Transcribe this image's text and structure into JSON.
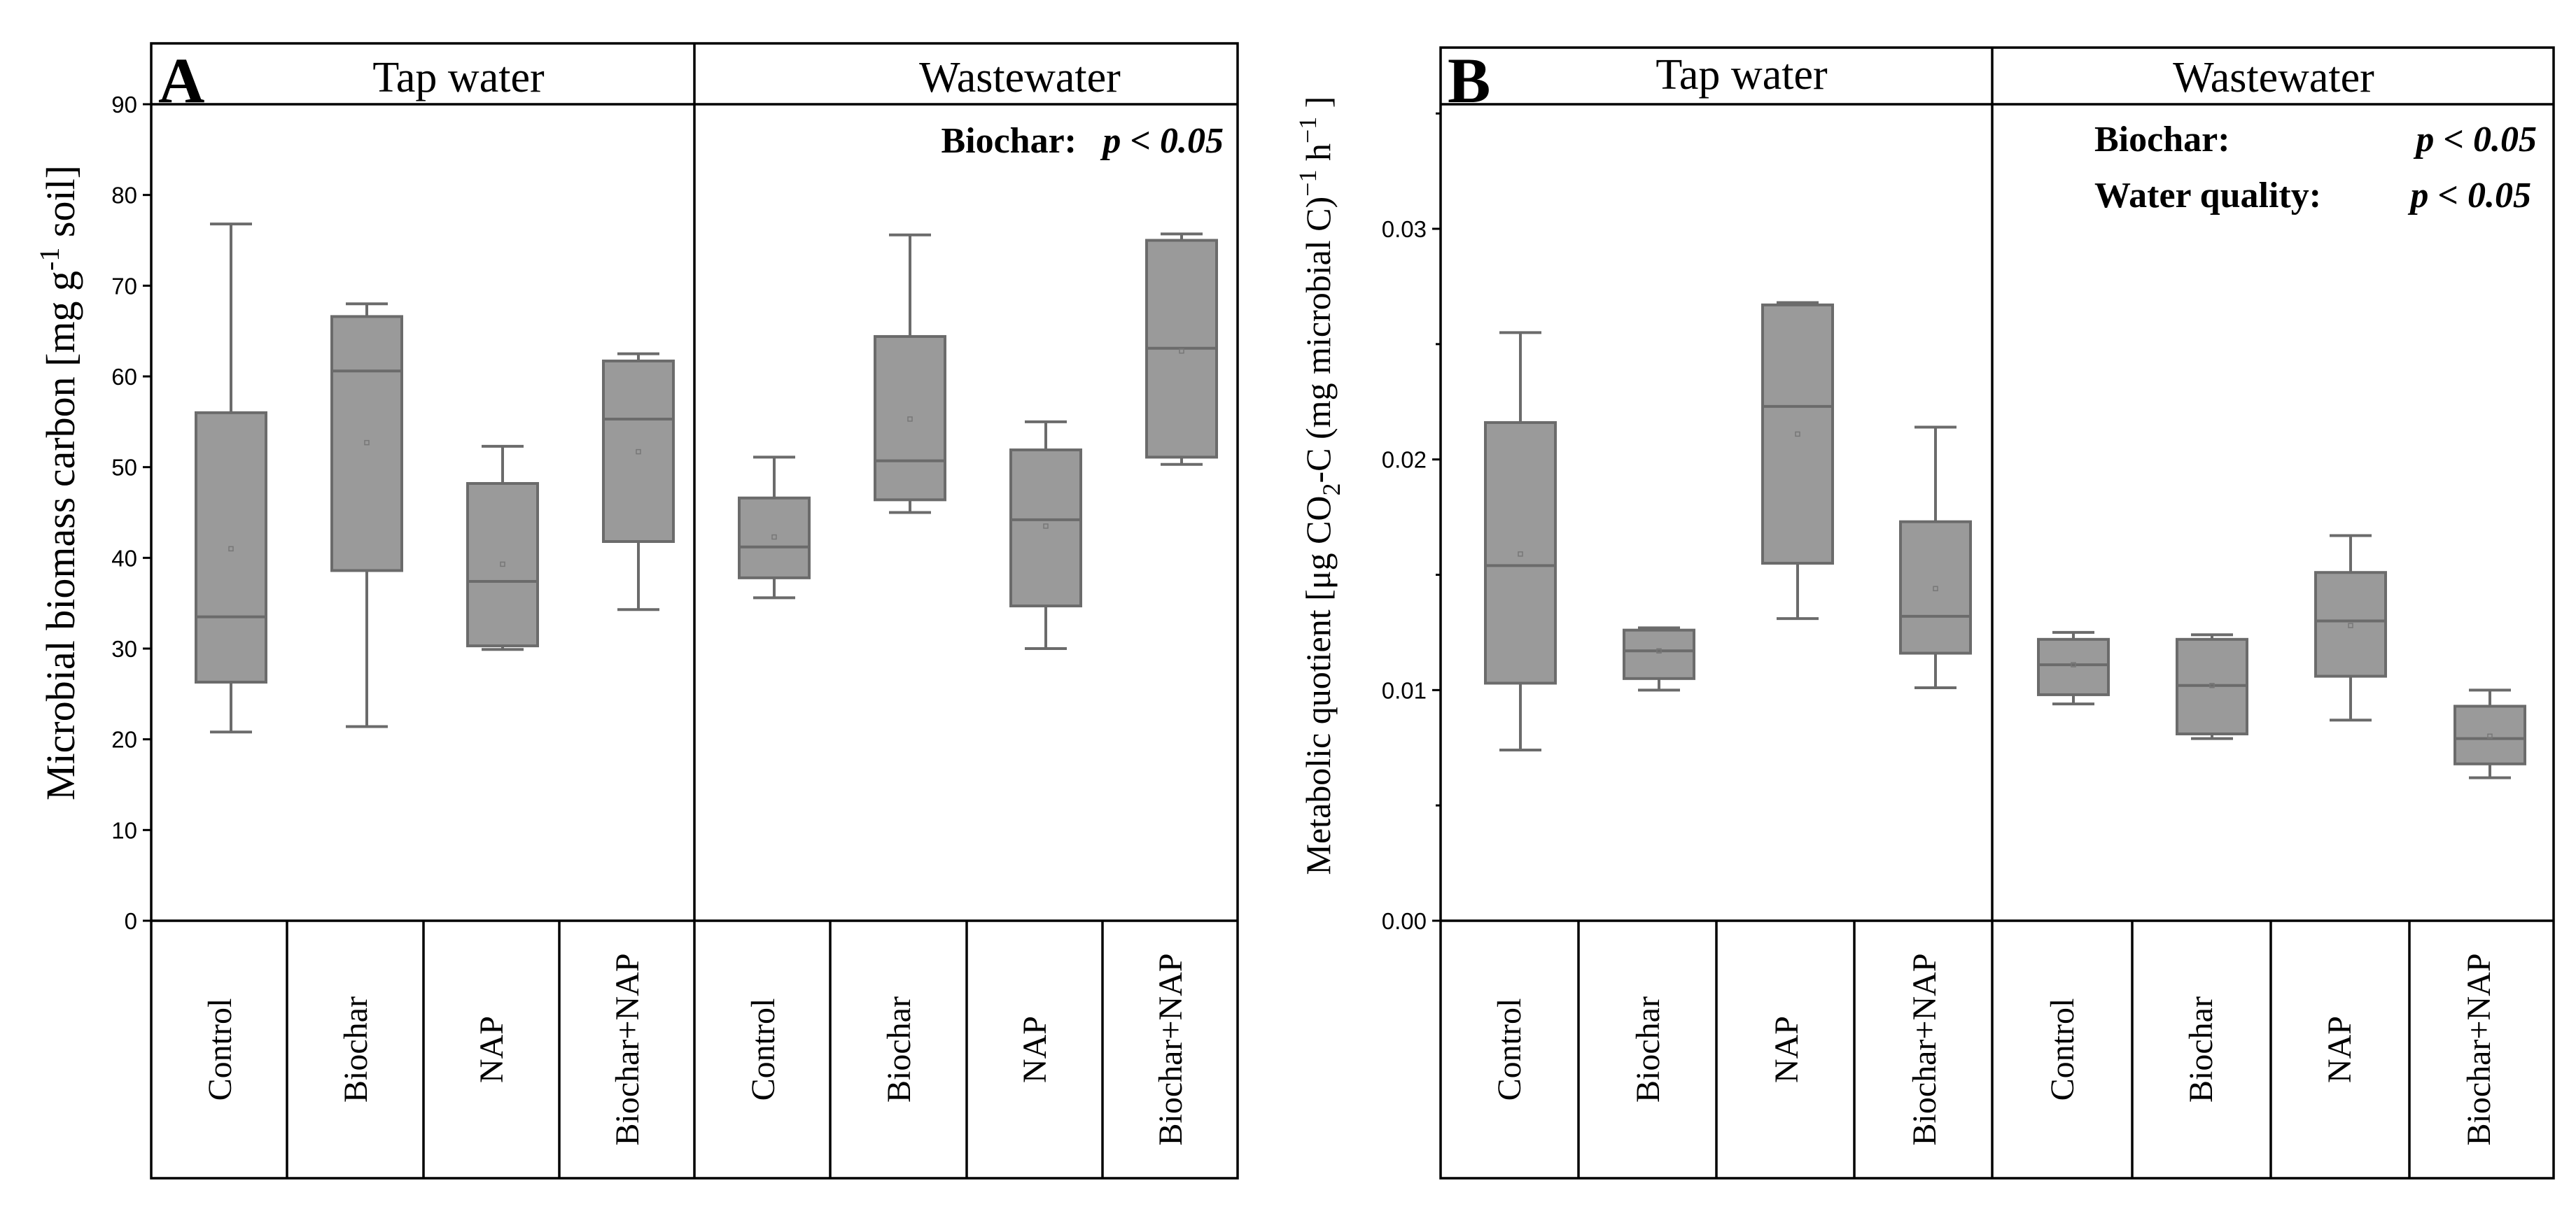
{
  "chart_data": [
    {
      "type": "box",
      "panel": "A",
      "ylabel": "Microbial biomass carbon [mg g",
      "ylabel_sup": "-1",
      "ylabel_tail": " soil]",
      "ylim": [
        0,
        90
      ],
      "yticks": [
        0,
        10,
        20,
        30,
        40,
        50,
        60,
        70,
        80,
        90
      ],
      "ytick_labels": [
        "0",
        "10",
        "20",
        "30",
        "40",
        "50",
        "60",
        "70",
        "80",
        "90"
      ],
      "groups": [
        {
          "name": "Tap water",
          "stats": [],
          "boxes": [
            {
              "label": "Control",
              "min": 20.8,
              "q1": 26.3,
              "median": 33.5,
              "q3": 56.0,
              "max": 76.8,
              "mean": 41.0
            },
            {
              "label": "Biochar",
              "min": 21.4,
              "q1": 38.6,
              "median": 60.6,
              "q3": 66.6,
              "max": 68.0,
              "mean": 52.7
            },
            {
              "label": "NAP",
              "min": 29.9,
              "q1": 30.3,
              "median": 37.4,
              "q3": 48.2,
              "max": 52.3,
              "mean": 39.3
            },
            {
              "label": "Biochar+NAP",
              "min": 34.3,
              "q1": 41.8,
              "median": 55.3,
              "q3": 61.7,
              "max": 62.5,
              "mean": 51.7
            }
          ]
        },
        {
          "name": "Wastewater",
          "stats": [
            {
              "label": "Biochar:",
              "p": "p < 0.05"
            }
          ],
          "boxes": [
            {
              "label": "Control",
              "min": 35.6,
              "q1": 37.8,
              "median": 41.2,
              "q3": 46.6,
              "max": 51.1,
              "mean": 42.3
            },
            {
              "label": "Biochar",
              "min": 45.0,
              "q1": 46.4,
              "median": 50.7,
              "q3": 64.4,
              "max": 75.6,
              "mean": 55.3
            },
            {
              "label": "NAP",
              "min": 30.0,
              "q1": 34.7,
              "median": 44.2,
              "q3": 51.9,
              "max": 55.0,
              "mean": 43.5
            },
            {
              "label": "Biochar+NAP",
              "min": 50.3,
              "q1": 51.1,
              "median": 63.1,
              "q3": 75.0,
              "max": 75.7,
              "mean": 62.8
            }
          ]
        }
      ]
    },
    {
      "type": "box",
      "panel": "B",
      "ylabel": "Metabolic quotient [μg CO",
      "ylabel_sub": "2",
      "ylabel_mid": "-C (mg microbial C)",
      "ylabel_sup": "−1",
      "ylabel_tail2": " h",
      "ylabel_sup2": "−1",
      "ylabel_end": " ]",
      "ylim": [
        0,
        0.0354
      ],
      "yticks": [
        0,
        0.01,
        0.02,
        0.03
      ],
      "ytick_labels": [
        "0.00",
        "0.01",
        "0.02",
        "0.03"
      ],
      "minor_yticks": [
        0.005,
        0.015,
        0.025,
        0.035
      ],
      "groups": [
        {
          "name": "Tap water",
          "stats": [],
          "boxes": [
            {
              "label": "Control",
              "min": 0.0074,
              "q1": 0.0103,
              "median": 0.0154,
              "q3": 0.0216,
              "max": 0.0255,
              "mean": 0.0159
            },
            {
              "label": "Biochar",
              "min": 0.01,
              "q1": 0.0105,
              "median": 0.0117,
              "q3": 0.0126,
              "max": 0.0127,
              "mean": 0.0117
            },
            {
              "label": "NAP",
              "min": 0.0131,
              "q1": 0.0155,
              "median": 0.0223,
              "q3": 0.0267,
              "max": 0.0268,
              "mean": 0.0211
            },
            {
              "label": "Biochar+NAP",
              "min": 0.0101,
              "q1": 0.0116,
              "median": 0.0132,
              "q3": 0.0173,
              "max": 0.0214,
              "mean": 0.0144
            }
          ]
        },
        {
          "name": "Wastewater",
          "stats": [
            {
              "label": "Biochar:",
              "p": "p < 0.05"
            },
            {
              "label": "Water quality:",
              "p": "p < 0.05"
            }
          ],
          "boxes": [
            {
              "label": "Control",
              "min": 0.0094,
              "q1": 0.0098,
              "median": 0.0111,
              "q3": 0.0122,
              "max": 0.0125,
              "mean": 0.0111
            },
            {
              "label": "Biochar",
              "min": 0.0079,
              "q1": 0.0081,
              "median": 0.0102,
              "q3": 0.0122,
              "max": 0.0124,
              "mean": 0.0102
            },
            {
              "label": "NAP",
              "min": 0.0087,
              "q1": 0.0106,
              "median": 0.013,
              "q3": 0.0151,
              "max": 0.0167,
              "mean": 0.0128
            },
            {
              "label": "Biochar+NAP",
              "min": 0.0062,
              "q1": 0.0068,
              "median": 0.0079,
              "q3": 0.0093,
              "max": 0.01,
              "mean": 0.008
            }
          ]
        }
      ]
    }
  ]
}
